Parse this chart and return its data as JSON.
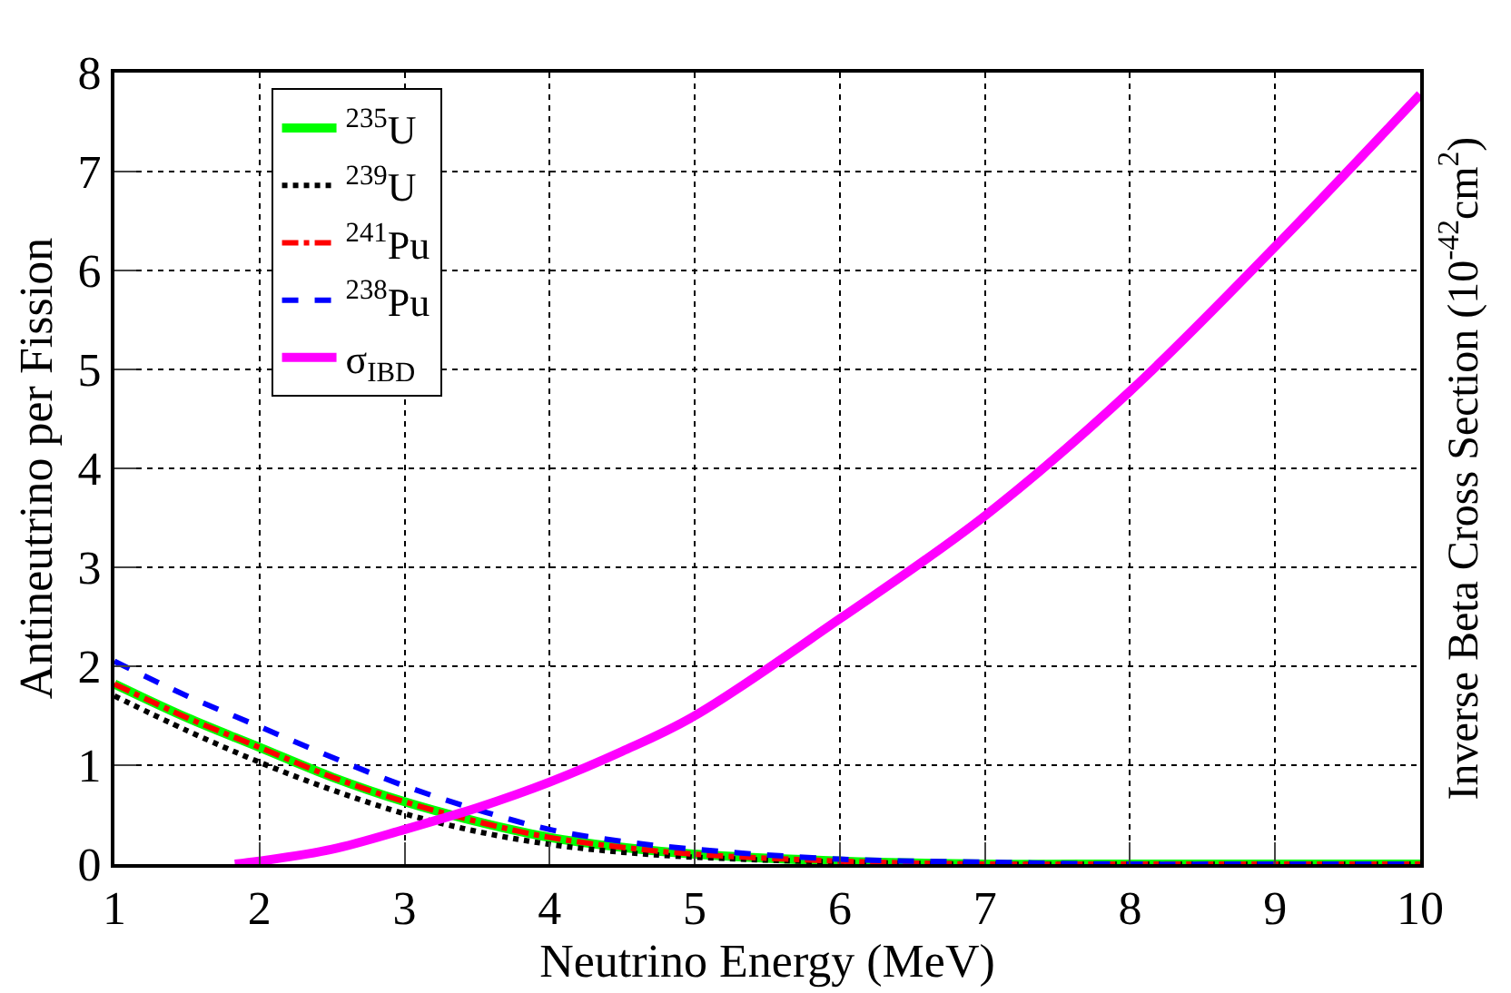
{
  "chart_data": {
    "type": "line",
    "xlabel": "Neutrino Energy (MeV)",
    "ylabel": "Antineutrino per Fission",
    "y2label": "Inverse Beta Cross Section (10$^{-42}$cm$^{2}$)",
    "x": [
      1,
      1.5,
      2,
      2.5,
      3,
      3.5,
      4,
      4.5,
      5,
      6,
      7,
      8,
      9,
      10
    ],
    "series": [
      {
        "name": "$^{235}$U",
        "color": "#00ff00",
        "line_style": "solid",
        "values": [
          1.82,
          1.48,
          1.18,
          0.88,
          0.63,
          0.43,
          0.27,
          0.17,
          0.1,
          0.03,
          0,
          0,
          0,
          0
        ]
      },
      {
        "name": "$^{239}$U",
        "color": "#000000",
        "line_style": "dotted",
        "values": [
          1.7,
          1.35,
          1.03,
          0.75,
          0.51,
          0.33,
          0.2,
          0.12,
          0.07,
          0.02,
          0,
          0,
          0,
          0
        ]
      },
      {
        "name": "$^{241}$Pu",
        "color": "#ff0000",
        "line_style": "dashdot",
        "values": [
          1.82,
          1.48,
          1.18,
          0.88,
          0.63,
          0.43,
          0.27,
          0.17,
          0.1,
          0.03,
          0,
          0,
          0,
          0
        ]
      },
      {
        "name": "$^{238}$Pu",
        "color": "#0000ff",
        "line_style": "dashed",
        "values": [
          2.05,
          1.7,
          1.39,
          1.08,
          0.79,
          0.55,
          0.35,
          0.23,
          0.15,
          0.05,
          0.02,
          0,
          0,
          0
        ]
      },
      {
        "name": "σ$_{IBD}$",
        "color": "#ff00ff",
        "line_style": "solid",
        "x": [
          1.83,
          2,
          2.5,
          3,
          3.5,
          4,
          4.5,
          5,
          6,
          7,
          8,
          9,
          10
        ],
        "values": [
          0,
          0.03,
          0.15,
          0.35,
          0.57,
          0.83,
          1.14,
          1.5,
          2.48,
          3.52,
          4.78,
          6.24,
          7.78
        ]
      }
    ],
    "xlim": [
      1,
      10
    ],
    "xticks": [
      1,
      2,
      3,
      4,
      5,
      6,
      7,
      8,
      9,
      10
    ],
    "ylim": [
      0,
      8
    ],
    "yticks": [
      0,
      1,
      2,
      3,
      4,
      5,
      6,
      7,
      8
    ],
    "grid": true,
    "legend": "top left",
    "marker": "none"
  }
}
